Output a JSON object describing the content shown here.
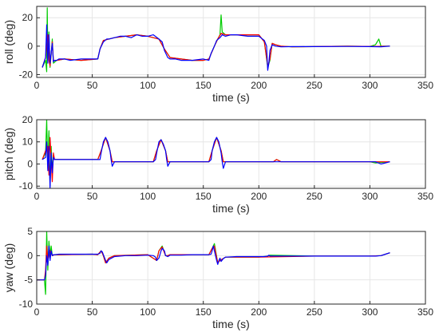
{
  "chart_data": [
    {
      "type": "line",
      "xlabel": "time (s)",
      "ylabel": "roll (deg)",
      "xlim": [
        0,
        350
      ],
      "ylim": [
        -22,
        28
      ],
      "xticks": [
        0,
        50,
        100,
        150,
        200,
        250,
        300,
        350
      ],
      "yticks": [
        -20,
        0,
        20
      ],
      "grid": true,
      "series": [
        {
          "color": "#00cc00",
          "x": [
            5,
            8,
            9,
            9.5,
            10,
            11,
            12,
            13,
            14,
            15,
            18,
            25,
            40,
            55,
            57,
            60,
            70,
            80,
            90,
            100,
            110,
            115,
            120,
            130,
            140,
            150,
            155,
            160,
            163,
            165,
            166,
            167,
            170,
            180,
            190,
            200,
            205,
            208,
            210,
            212,
            215,
            220,
            230,
            250,
            280,
            300,
            305,
            308,
            310,
            318
          ],
          "y": [
            -15,
            -10,
            -18,
            27,
            -5,
            10,
            -15,
            -6,
            5,
            -12,
            -10,
            -9,
            -10,
            -9,
            -2,
            4,
            6,
            7,
            8,
            7,
            5,
            -2,
            -8,
            -9,
            -10,
            -10,
            -9,
            0,
            5,
            8,
            22,
            10,
            8,
            8,
            8,
            8,
            3,
            -15,
            -10,
            2,
            1,
            0,
            -0.5,
            -0.3,
            0,
            -0.2,
            1,
            5,
            0,
            0
          ]
        },
        {
          "color": "#ff0000",
          "x": [
            5,
            8,
            10,
            11,
            12,
            14,
            15,
            18,
            25,
            40,
            55,
            57,
            60,
            70,
            80,
            90,
            100,
            110,
            115,
            120,
            130,
            140,
            150,
            155,
            160,
            163,
            166,
            170,
            180,
            190,
            200,
            205,
            208,
            210,
            212,
            215,
            220,
            230,
            250,
            280,
            300,
            318
          ],
          "y": [
            -15,
            -8,
            8,
            -10,
            -14,
            3,
            -10,
            -10,
            -9,
            -10,
            -9,
            -2,
            4,
            6,
            7,
            8,
            7,
            5,
            -2,
            -8,
            -9,
            -10,
            -10,
            -9,
            0,
            5,
            9,
            8,
            8,
            8,
            8,
            3,
            -14,
            -9,
            2,
            1,
            0,
            -0.5,
            -0.3,
            0,
            -0.2,
            0
          ]
        },
        {
          "color": "#0000ff",
          "x": [
            5,
            8,
            9,
            10,
            11,
            12,
            13,
            14,
            15,
            16,
            18,
            20,
            25,
            30,
            40,
            50,
            55,
            57,
            60,
            63,
            65,
            70,
            75,
            80,
            85,
            90,
            95,
            100,
            105,
            110,
            113,
            115,
            118,
            120,
            125,
            130,
            140,
            150,
            155,
            157,
            160,
            162,
            165,
            167,
            170,
            175,
            180,
            190,
            200,
            205,
            207,
            208,
            209,
            210,
            212,
            215,
            220,
            230,
            250,
            280,
            300,
            310,
            318
          ],
          "y": [
            -15,
            -8,
            15,
            -12,
            8,
            -12,
            -5,
            2,
            -11,
            -10,
            -10,
            -9,
            -9,
            -10,
            -9,
            -9,
            -9,
            -2,
            3,
            5,
            5,
            6,
            7,
            7,
            6,
            8,
            7,
            7,
            8,
            5,
            3,
            -3,
            -8,
            -9,
            -9,
            -10,
            -10,
            -9,
            -10,
            -5,
            0,
            4,
            6,
            8,
            7,
            8,
            8,
            7,
            7,
            4,
            0,
            -17,
            -12,
            -3,
            1,
            0,
            -0.5,
            -0.3,
            -0.3,
            -0.2,
            -0.3,
            -0.4,
            0
          ]
        }
      ]
    },
    {
      "type": "line",
      "xlabel": "time (s)",
      "ylabel": "pitch (deg)",
      "xlim": [
        0,
        350
      ],
      "ylim": [
        -11,
        20
      ],
      "xticks": [
        0,
        50,
        100,
        150,
        200,
        250,
        300,
        350
      ],
      "yticks": [
        -10,
        0,
        10,
        20
      ],
      "grid": true,
      "series": [
        {
          "color": "#00cc00",
          "x": [
            5,
            8,
            9,
            10,
            11,
            12,
            13,
            14,
            15,
            16,
            20,
            50,
            55,
            58,
            62,
            66,
            68,
            70,
            100,
            105,
            108,
            112,
            116,
            118,
            120,
            150,
            155,
            158,
            162,
            166,
            168,
            170,
            200,
            213,
            216,
            220,
            250,
            300,
            305,
            318
          ],
          "y": [
            2,
            5,
            20,
            -2,
            15,
            -10,
            8,
            -3,
            4,
            2,
            2,
            2,
            2,
            6,
            12,
            6,
            1,
            1,
            1,
            1,
            6,
            11,
            6,
            1,
            1,
            1,
            1,
            6,
            12,
            6,
            1,
            1,
            1,
            1,
            2,
            1,
            1,
            1,
            0.5,
            1
          ]
        },
        {
          "color": "#ff0000",
          "x": [
            5,
            8,
            10,
            11,
            12,
            14,
            15,
            16,
            20,
            50,
            55,
            58,
            62,
            66,
            68,
            70,
            100,
            105,
            108,
            112,
            116,
            118,
            120,
            150,
            155,
            158,
            162,
            166,
            168,
            170,
            200,
            213,
            216,
            220,
            250,
            300,
            318
          ],
          "y": [
            2,
            6,
            8,
            -5,
            12,
            -8,
            5,
            2,
            2,
            2,
            2,
            6,
            12,
            6,
            1,
            1,
            1,
            1,
            6,
            11,
            6,
            1,
            1,
            1,
            1,
            6,
            12,
            6,
            1,
            1,
            1,
            1,
            2,
            1,
            1,
            1,
            1
          ]
        },
        {
          "color": "#0000ff",
          "x": [
            5,
            8,
            9,
            10,
            11,
            12,
            13,
            14,
            15,
            16,
            18,
            20,
            30,
            40,
            50,
            55,
            57,
            58,
            60,
            62,
            64,
            66,
            67,
            68,
            70,
            80,
            90,
            100,
            105,
            107,
            108,
            110,
            112,
            114,
            116,
            117,
            118,
            120,
            130,
            140,
            150,
            155,
            157,
            158,
            160,
            162,
            164,
            166,
            167,
            168,
            170,
            180,
            190,
            200,
            210,
            220,
            240,
            260,
            280,
            300,
            305,
            310,
            318
          ],
          "y": [
            2,
            3,
            10,
            -3,
            8,
            -11,
            5,
            -4,
            3,
            2,
            2,
            2,
            2,
            2,
            2,
            2,
            2,
            5,
            10,
            12,
            10,
            6,
            2,
            -1,
            1,
            1,
            1,
            1,
            1,
            2,
            5,
            10,
            11,
            9,
            6,
            2,
            -1,
            1,
            1,
            1,
            1,
            1,
            2,
            6,
            10,
            12,
            10,
            5,
            1,
            -2,
            1,
            1,
            1,
            1,
            1,
            1,
            1,
            1,
            1,
            1,
            1,
            0,
            1
          ]
        }
      ]
    },
    {
      "type": "line",
      "xlabel": "time (s)",
      "ylabel": "yaw (deg)",
      "xlim": [
        0,
        350
      ],
      "ylim": [
        -10,
        5
      ],
      "xticks": [
        0,
        50,
        100,
        150,
        200,
        250,
        300,
        350
      ],
      "yticks": [
        -10,
        -5,
        0,
        5
      ],
      "grid": true,
      "series": [
        {
          "color": "#00cc00",
          "x": [
            0,
            7,
            8,
            9,
            10,
            11,
            12,
            13,
            14,
            16,
            20,
            50,
            55,
            58,
            60,
            62,
            65,
            70,
            100,
            108,
            110,
            113,
            116,
            118,
            120,
            150,
            155,
            158,
            160,
            163,
            165,
            170,
            200,
            208,
            210,
            250,
            300,
            310,
            318
          ],
          "y": [
            -5,
            -5,
            -8,
            5,
            -3,
            3,
            0,
            2,
            0,
            0.2,
            0.2,
            0.3,
            0.2,
            1,
            0,
            -1.5,
            -0.5,
            0,
            0.2,
            -1,
            1,
            2,
            0,
            0,
            0.2,
            0.2,
            0.2,
            1.5,
            2.5,
            -1.5,
            -1,
            -0.3,
            -0.3,
            -0.1,
            0.1,
            -0.1,
            -0.1,
            0,
            0.6
          ]
        },
        {
          "color": "#ff0000",
          "x": [
            0,
            7,
            8,
            9,
            10,
            12,
            14,
            16,
            20,
            50,
            55,
            58,
            60,
            62,
            65,
            70,
            100,
            108,
            110,
            113,
            116,
            118,
            120,
            150,
            155,
            158,
            160,
            163,
            165,
            170,
            200,
            250,
            300,
            310,
            318
          ],
          "y": [
            -5,
            -5,
            -3,
            2,
            -1,
            1,
            0,
            0.2,
            0.2,
            0.3,
            0.2,
            1,
            0,
            -1.5,
            -0.5,
            0,
            0.2,
            -1,
            1,
            1.8,
            0,
            0,
            0.2,
            0.2,
            0.2,
            1.5,
            2,
            -1.5,
            -1,
            -0.3,
            -0.3,
            -0.1,
            -0.1,
            0,
            0.6
          ]
        },
        {
          "color": "#0000ff",
          "x": [
            0,
            7,
            8,
            9,
            10,
            11,
            12,
            13,
            14,
            15,
            16,
            20,
            30,
            40,
            50,
            55,
            57,
            58,
            59,
            60,
            62,
            63,
            65,
            70,
            80,
            90,
            100,
            105,
            107,
            108,
            110,
            112,
            113,
            115,
            116,
            118,
            120,
            130,
            140,
            150,
            155,
            157,
            158,
            159,
            160,
            161,
            162,
            163,
            164,
            165,
            166,
            168,
            170,
            180,
            190,
            200,
            205,
            208,
            209,
            210,
            220,
            240,
            260,
            280,
            300,
            305,
            310,
            314,
            318
          ],
          "y": [
            -5,
            -5,
            -4,
            0,
            -2,
            2,
            -1,
            1,
            0,
            0.2,
            0.2,
            0.3,
            0.3,
            0.3,
            0.3,
            0.3,
            0.5,
            1,
            0.8,
            0.2,
            -1,
            -1.5,
            -0.8,
            -0.2,
            0,
            0,
            0.1,
            0,
            -0.3,
            -1,
            -0.5,
            1,
            1.5,
            1,
            0,
            -0.2,
            0.1,
            0.1,
            0.2,
            0.2,
            0.2,
            0.3,
            1,
            2,
            1,
            0,
            -1,
            -1.8,
            -1,
            -0.5,
            -1.2,
            -0.6,
            -0.3,
            -0.2,
            -0.2,
            -0.2,
            -0.2,
            -0.1,
            0.1,
            -0.1,
            -0.1,
            -0.1,
            -0.1,
            -0.1,
            -0.1,
            -0.1,
            0,
            0.3,
            0.6
          ]
        }
      ]
    }
  ]
}
